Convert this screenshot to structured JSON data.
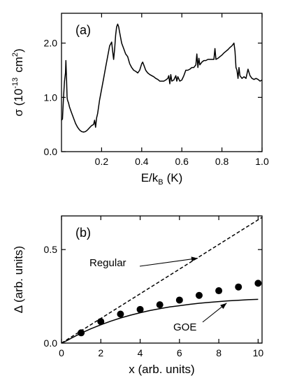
{
  "chart_data": [
    {
      "type": "line",
      "panel_label": "(a)",
      "title": "",
      "xlabel": "E/k",
      "xlabel_sub": "B",
      "xlabel_unit": "(K)",
      "ylabel": "σ (10",
      "ylabel_sup": "-13",
      "ylabel_unit": "cm",
      "ylabel_unit_sup": "2",
      "ylabel_close": ")",
      "xlim": [
        0.0,
        1.0
      ],
      "ylim": [
        0.0,
        2.55
      ],
      "xticks": [
        0.2,
        0.4,
        0.6,
        0.8,
        1.0
      ],
      "xtick_labels": [
        "0.2",
        "0.4",
        "0.6",
        "0.8",
        "1.0"
      ],
      "yticks": [
        0.0,
        1.0,
        2.0
      ],
      "ytick_labels": [
        "0.0",
        "1.0",
        "2.0"
      ],
      "series": [
        {
          "x": [
            0.0,
            0.005,
            0.01,
            0.015,
            0.02,
            0.022,
            0.025,
            0.028,
            0.03,
            0.035,
            0.04,
            0.05,
            0.06,
            0.07,
            0.08,
            0.09,
            0.1,
            0.11,
            0.12,
            0.13,
            0.14,
            0.15,
            0.16,
            0.165,
            0.17,
            0.175,
            0.18,
            0.19,
            0.2,
            0.21,
            0.22,
            0.23,
            0.24,
            0.25,
            0.255,
            0.26,
            0.265,
            0.27,
            0.275,
            0.28,
            0.285,
            0.29,
            0.3,
            0.31,
            0.32,
            0.33,
            0.34,
            0.35,
            0.36,
            0.37,
            0.38,
            0.39,
            0.4,
            0.405,
            0.41,
            0.42,
            0.43,
            0.44,
            0.45,
            0.46,
            0.47,
            0.48,
            0.49,
            0.5,
            0.51,
            0.52,
            0.53,
            0.535,
            0.54,
            0.545,
            0.55,
            0.56,
            0.57,
            0.575,
            0.58,
            0.59,
            0.6,
            0.61,
            0.62,
            0.63,
            0.64,
            0.65,
            0.66,
            0.67,
            0.675,
            0.68,
            0.685,
            0.69,
            0.7,
            0.71,
            0.72,
            0.73,
            0.74,
            0.75,
            0.76,
            0.765,
            0.77,
            0.78,
            0.79,
            0.8,
            0.81,
            0.82,
            0.83,
            0.84,
            0.85,
            0.86,
            0.865,
            0.87,
            0.875,
            0.88,
            0.885,
            0.89,
            0.9,
            0.91,
            0.92,
            0.93,
            0.94,
            0.95,
            0.96,
            0.97,
            0.98,
            0.99,
            1.0
          ],
          "y": [
            0.58,
            0.6,
            1.0,
            1.3,
            1.45,
            1.68,
            1.35,
            1.0,
            0.95,
            0.9,
            0.82,
            0.72,
            0.62,
            0.52,
            0.45,
            0.4,
            0.37,
            0.36,
            0.37,
            0.4,
            0.44,
            0.48,
            0.5,
            0.58,
            0.45,
            0.62,
            0.7,
            0.95,
            1.15,
            1.35,
            1.55,
            1.75,
            1.95,
            2.02,
            1.85,
            1.7,
            1.9,
            2.15,
            2.3,
            2.35,
            2.3,
            2.2,
            2.0,
            1.9,
            1.8,
            1.75,
            1.62,
            1.55,
            1.5,
            1.48,
            1.45,
            1.5,
            1.62,
            1.65,
            1.6,
            1.5,
            1.45,
            1.42,
            1.4,
            1.38,
            1.35,
            1.33,
            1.3,
            1.3,
            1.3,
            1.32,
            1.35,
            1.4,
            1.25,
            1.42,
            1.3,
            1.32,
            1.4,
            1.3,
            1.38,
            1.3,
            1.32,
            1.4,
            1.5,
            1.5,
            1.52,
            1.55,
            1.55,
            1.6,
            1.8,
            1.55,
            1.72,
            1.6,
            1.65,
            1.68,
            1.68,
            1.7,
            1.7,
            1.7,
            1.7,
            1.9,
            1.7,
            1.72,
            1.75,
            1.78,
            1.82,
            1.85,
            1.88,
            1.92,
            1.95,
            2.0,
            1.85,
            1.55,
            1.5,
            1.35,
            1.55,
            1.4,
            1.35,
            1.38,
            1.35,
            1.52,
            1.4,
            1.35,
            1.33,
            1.35,
            1.33,
            1.3,
            1.32
          ]
        }
      ]
    },
    {
      "type": "line",
      "panel_label": "(b)",
      "title": "",
      "xlabel": "x (arb. units)",
      "ylabel": "Δ (arb. units)",
      "xlim": [
        0,
        10.2
      ],
      "ylim": [
        0.0,
        0.68
      ],
      "xticks": [
        0,
        2,
        4,
        6,
        8,
        10
      ],
      "xtick_labels": [
        "0",
        "2",
        "4",
        "6",
        "8",
        "10"
      ],
      "yticks": [
        0.0,
        0.5
      ],
      "ytick_labels": [
        "0.0",
        "0.5"
      ],
      "annotations": [
        {
          "text": "Regular",
          "points_to_x": 7.0
        },
        {
          "text": "GOE",
          "points_to_x": 8.4
        }
      ],
      "series": [
        {
          "name": "Regular",
          "style": "dashed",
          "x": [
            0,
            10.2
          ],
          "y": [
            0.0,
            0.672
          ]
        },
        {
          "name": "GOE",
          "style": "solid",
          "x": [
            0,
            0.25,
            0.5,
            0.75,
            1,
            1.5,
            2,
            2.5,
            3,
            3.5,
            4,
            4.5,
            5,
            5.5,
            6,
            6.5,
            7,
            7.5,
            8,
            8.5,
            9,
            9.5,
            10
          ],
          "y": [
            0.0,
            0.012,
            0.026,
            0.04,
            0.053,
            0.077,
            0.098,
            0.117,
            0.134,
            0.149,
            0.162,
            0.174,
            0.184,
            0.193,
            0.2,
            0.207,
            0.213,
            0.218,
            0.222,
            0.226,
            0.229,
            0.232,
            0.234
          ]
        },
        {
          "name": "data",
          "style": "markers",
          "x": [
            1,
            2,
            3,
            4,
            5,
            6,
            7,
            8,
            9,
            10
          ],
          "y": [
            0.055,
            0.115,
            0.155,
            0.18,
            0.205,
            0.23,
            0.255,
            0.28,
            0.3,
            0.32
          ]
        }
      ]
    }
  ]
}
